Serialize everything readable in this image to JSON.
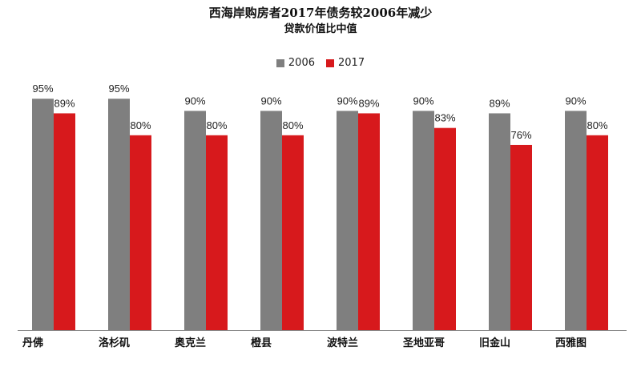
{
  "chart_data": {
    "type": "bar",
    "title": "西海岸购房者2017年债务较2006年减少",
    "subtitle": "贷款价值比中值",
    "categories": [
      "丹佛",
      "洛杉矶",
      "奥克兰",
      "橙县",
      "波特兰",
      "圣地亚哥",
      "旧金山",
      "西雅图"
    ],
    "series": [
      {
        "name": "2006",
        "color": "#7f7f7f",
        "values": [
          95,
          95,
          90,
          90,
          90,
          90,
          89,
          90
        ]
      },
      {
        "name": "2017",
        "color": "#d7191c",
        "values": [
          89,
          80,
          80,
          80,
          89,
          83,
          76,
          80
        ]
      }
    ],
    "value_suffix": "%",
    "ylim": [
      0,
      100
    ],
    "grid": false,
    "legend_position": "top-center"
  }
}
